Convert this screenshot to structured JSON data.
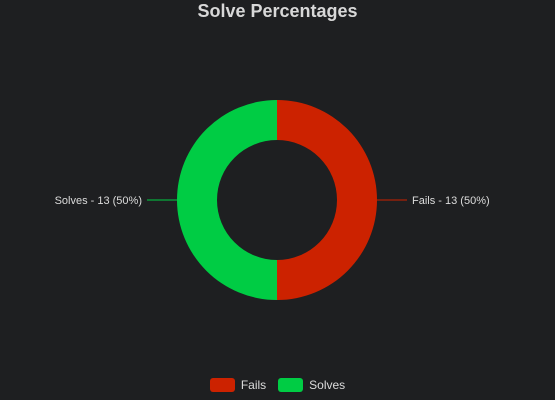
{
  "chart_data": {
    "type": "pie",
    "variant": "donut",
    "title": "Solve Percentages",
    "categories": [
      "Fails",
      "Solves"
    ],
    "values": [
      13,
      13
    ],
    "percentages": [
      50,
      50
    ],
    "slice_labels": [
      "Fails - 13 (50%)",
      "Solves - 13 (50%)"
    ],
    "colors": [
      "#cc2200",
      "#00cc44"
    ],
    "legend_position": "bottom",
    "background": "#1e1f21"
  }
}
